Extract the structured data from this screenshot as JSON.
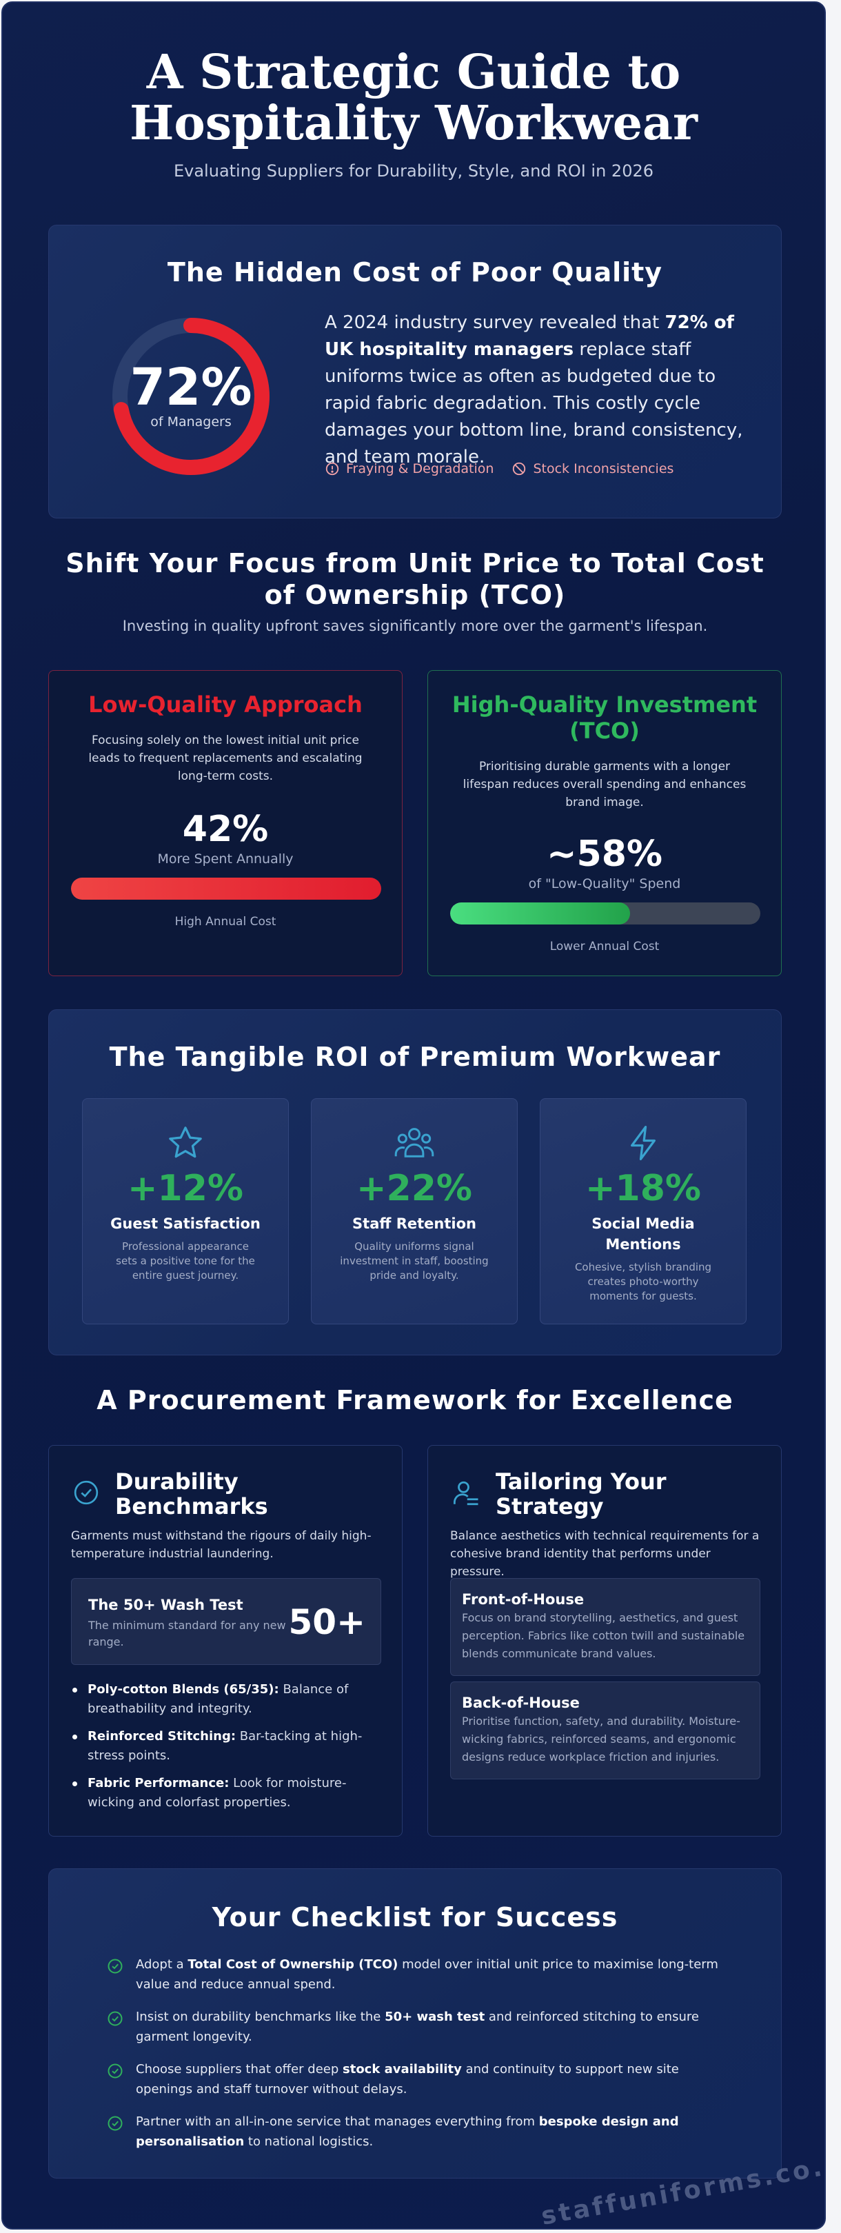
{
  "header": {
    "title": "A Strategic Guide to Hospitality Workwear",
    "subtitle": "Evaluating Suppliers for Durability, Style, and ROI in 2026"
  },
  "hidden_cost": {
    "title": "The Hidden Cost of Poor Quality",
    "stat_value": "72%",
    "stat_caption": "of Managers",
    "stat_fraction": 0.72,
    "text_before": "A 2024 industry survey revealed that ",
    "text_bold": "72% of UK hospitality managers",
    "text_after": " replace staff uniforms twice as often as budgeted due to rapid fabric degradation. This costly cycle damages your bottom line, brand consistency, and team morale.",
    "tags": [
      {
        "icon": "alert-circle-icon",
        "label": "Fraying & Degradation"
      },
      {
        "icon": "ban-icon",
        "label": "Stock Inconsistencies"
      }
    ],
    "accent": "#e8232f",
    "track": "#2b3f6e"
  },
  "tco": {
    "title": "Shift Your Focus from Unit Price to Total Cost of Ownership (TCO)",
    "subtitle": "Investing in quality upfront saves significantly more over the garment's lifespan.",
    "low": {
      "title": "Low-Quality Approach",
      "desc": "Focusing solely on the lowest initial unit price leads to frequent replacements and escalating long-term costs.",
      "value": "42%",
      "caption": "More Spent Annually",
      "bar_fraction": 1.0,
      "bar_caption": "High Annual Cost",
      "color": "#e8232f"
    },
    "high": {
      "title": "High-Quality Investment (TCO)",
      "desc": "Prioritising durable garments with a longer lifespan reduces overall spending and enhances brand image.",
      "value": "~58%",
      "caption": "of \"Low-Quality\" Spend",
      "bar_fraction": 0.58,
      "bar_caption": "Lower Annual Cost",
      "color": "#2fb95e"
    }
  },
  "roi": {
    "title": "The Tangible ROI of Premium Workwear",
    "items": [
      {
        "icon": "star-icon",
        "value": "+12%",
        "label": "Guest Satisfaction",
        "desc": "Professional appearance sets a positive tone for the entire guest journey."
      },
      {
        "icon": "users-icon",
        "value": "+22%",
        "label": "Staff Retention",
        "desc": "Quality uniforms signal investment in staff, boosting pride and loyalty."
      },
      {
        "icon": "lightning-icon",
        "value": "+18%",
        "label": "Social Media Mentions",
        "desc": "Cohesive, stylish branding creates photo-worthy moments for guests."
      }
    ]
  },
  "framework": {
    "title": "A Procurement Framework for Excellence",
    "left": {
      "title": "Durability Benchmarks",
      "desc": "Garments must withstand the rigours of daily high-temperature industrial laundering.",
      "wash_title": "The 50+ Wash Test",
      "wash_desc": "The minimum standard for any new range.",
      "wash_value": "50+",
      "bullets": [
        {
          "bold": "Poly-cotton Blends (65/35):",
          "text": " Balance of breathability and integrity."
        },
        {
          "bold": "Reinforced Stitching:",
          "text": " Bar-tacking at high-stress points."
        },
        {
          "bold": "Fabric Performance:",
          "text": " Look for moisture-wicking and colorfast properties."
        }
      ]
    },
    "right": {
      "title": "Tailoring Your Strategy",
      "desc": "Balance aesthetics with technical requirements for a cohesive brand identity that performs under pressure.",
      "subs": [
        {
          "title": "Front-of-House",
          "desc": "Focus on brand storytelling, aesthetics, and guest perception. Fabrics like cotton twill and sustainable blends communicate brand values."
        },
        {
          "title": "Back-of-House",
          "desc": "Prioritise function, safety, and durability. Moisture-wicking fabrics, reinforced seams, and ergonomic designs reduce workplace friction and injuries."
        }
      ]
    }
  },
  "checklist": {
    "title": "Your Checklist for Success",
    "items": [
      {
        "pre": "Adopt a ",
        "bold": "Total Cost of Ownership (TCO)",
        "post": " model over initial unit price to maximise long-term value and reduce annual spend."
      },
      {
        "pre": "Insist on durability benchmarks like the ",
        "bold": "50+ wash test",
        "post": " and reinforced stitching to ensure garment longevity."
      },
      {
        "pre": "Choose suppliers that offer deep ",
        "bold": "stock availability",
        "post": " and continuity to support new site openings and staff turnover without delays."
      },
      {
        "pre": "Partner with an all-in-one service that manages everything from ",
        "bold": "bespoke design and personalisation",
        "post": " to national logistics."
      }
    ]
  },
  "watermark": "staffuniforms.co.uk",
  "colors": {
    "icon_blue": "#3aa3cf",
    "check_green": "#2fb05c",
    "roi_green": "#2fb05c"
  }
}
